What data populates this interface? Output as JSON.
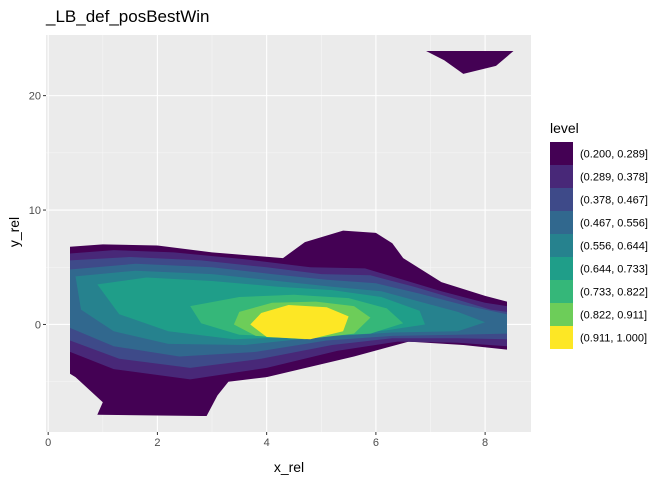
{
  "chart_data": {
    "type": "filled-contour",
    "title": "_LB_def_posBestWin",
    "xlabel": "x_rel",
    "ylabel": "y_rel",
    "xlim": [
      -0.04,
      8.84
    ],
    "ylim": [
      -9.4,
      25.3
    ],
    "x_ticks": [
      0,
      2,
      4,
      6,
      8
    ],
    "y_ticks": [
      0,
      10,
      20
    ],
    "x_tick_labels": [
      "0",
      "2",
      "4",
      "6",
      "8"
    ],
    "y_tick_labels": [
      "0",
      "10",
      "20"
    ],
    "grid": true,
    "legend": {
      "title": "level",
      "placement": "right",
      "entries": [
        {
          "label": "(0.200, 0.289]",
          "color": "#440154"
        },
        {
          "label": "(0.289, 0.378]",
          "color": "#482878"
        },
        {
          "label": "(0.378, 0.467]",
          "color": "#3E4A89"
        },
        {
          "label": "(0.467, 0.556]",
          "color": "#31688E"
        },
        {
          "label": "(0.556, 0.644]",
          "color": "#26828E"
        },
        {
          "label": "(0.644, 0.733]",
          "color": "#1F9E89"
        },
        {
          "label": "(0.733, 0.822]",
          "color": "#35B779"
        },
        {
          "label": "(0.822, 0.911]",
          "color": "#6DCD59"
        },
        {
          "label": "(0.911, 1.000]",
          "color": "#FDE725"
        }
      ]
    },
    "regions": [
      {
        "level": 0,
        "label": "(0.200, 0.289]",
        "points": [
          [
            0.4,
            6.8
          ],
          [
            1,
            7
          ],
          [
            2,
            6.9
          ],
          [
            3,
            6.3
          ],
          [
            4.3,
            5.8
          ],
          [
            4.7,
            7.2
          ],
          [
            5.4,
            8.2
          ],
          [
            6,
            8
          ],
          [
            6.3,
            7.1
          ],
          [
            6.5,
            5.8
          ],
          [
            7.2,
            3.7
          ],
          [
            8,
            2.5
          ],
          [
            8.4,
            2
          ],
          [
            8.4,
            -2.2
          ],
          [
            7.6,
            -1.8
          ],
          [
            6.6,
            -1.5
          ],
          [
            5.6,
            -2.8
          ],
          [
            4,
            -4.6
          ],
          [
            3.3,
            -5
          ],
          [
            3.1,
            -6.2
          ],
          [
            2.9,
            -8
          ],
          [
            2.8,
            -8
          ],
          [
            0.9,
            -7.9
          ],
          [
            1,
            -6.8
          ],
          [
            0.5,
            -4.6
          ],
          [
            0.4,
            -4.3
          ]
        ]
      },
      {
        "level": 0,
        "label": "(0.200, 0.289]",
        "points": [
          [
            6.92,
            23.9
          ],
          [
            7.25,
            23.1
          ],
          [
            7.6,
            21.9
          ],
          [
            8.2,
            22.6
          ],
          [
            8.52,
            23.9
          ]
        ]
      },
      {
        "level": 1,
        "label": "(0.289, 0.378]",
        "points": [
          [
            0.4,
            6.2
          ],
          [
            1.2,
            6.5
          ],
          [
            2.3,
            6.3
          ],
          [
            3.6,
            5.7
          ],
          [
            4.8,
            5
          ],
          [
            5.8,
            4.9
          ],
          [
            6.5,
            3.9
          ],
          [
            7.2,
            2.9
          ],
          [
            8,
            1.9
          ],
          [
            8.4,
            1.6
          ],
          [
            8.4,
            -1.9
          ],
          [
            7.5,
            -1.6
          ],
          [
            6.4,
            -1.5
          ],
          [
            5.3,
            -2.3
          ],
          [
            4,
            -3.8
          ],
          [
            2.6,
            -4.8
          ],
          [
            1.2,
            -3.9
          ],
          [
            0.4,
            -2.4
          ]
        ]
      },
      {
        "level": 2,
        "label": "(0.378, 0.467]",
        "points": [
          [
            0.4,
            5.6
          ],
          [
            1.5,
            5.9
          ],
          [
            2.8,
            5.6
          ],
          [
            4,
            5
          ],
          [
            5,
            4.4
          ],
          [
            5.9,
            4.3
          ],
          [
            6.7,
            3.3
          ],
          [
            7.4,
            2.3
          ],
          [
            8.1,
            1.3
          ],
          [
            8.4,
            1.1
          ],
          [
            8.4,
            -1.3
          ],
          [
            7.5,
            -1.2
          ],
          [
            6.3,
            -1.2
          ],
          [
            5.2,
            -1.8
          ],
          [
            3.9,
            -3
          ],
          [
            2.6,
            -3.8
          ],
          [
            1.3,
            -3
          ],
          [
            0.4,
            -1.4
          ]
        ]
      },
      {
        "level": 3,
        "label": "(0.467, 0.556]",
        "points": [
          [
            0.4,
            4.8
          ],
          [
            1.6,
            5.3
          ],
          [
            3,
            5
          ],
          [
            4.1,
            4.4
          ],
          [
            5.1,
            3.9
          ],
          [
            6,
            3.6
          ],
          [
            6.8,
            2.7
          ],
          [
            7.6,
            1.7
          ],
          [
            8.4,
            0.9
          ],
          [
            8.4,
            -0.8
          ],
          [
            7.5,
            -0.9
          ],
          [
            6.3,
            -1
          ],
          [
            5.1,
            -1.4
          ],
          [
            3.8,
            -2.4
          ],
          [
            2.4,
            -2.8
          ],
          [
            1.2,
            -1.9
          ],
          [
            0.4,
            -0.3
          ]
        ]
      },
      {
        "level": 4,
        "label": "(0.556, 0.644]",
        "points": [
          [
            0.5,
            4.2
          ],
          [
            1.6,
            4.7
          ],
          [
            3,
            4.4
          ],
          [
            4.2,
            3.8
          ],
          [
            5.2,
            3.3
          ],
          [
            6.1,
            2.9
          ],
          [
            6.8,
            2
          ],
          [
            7.5,
            1.1
          ],
          [
            8,
            0.2
          ],
          [
            7.5,
            -0.6
          ],
          [
            6.3,
            -0.7
          ],
          [
            5,
            -1.1
          ],
          [
            3.6,
            -1.8
          ],
          [
            2.2,
            -1.7
          ],
          [
            1.2,
            -0.6
          ],
          [
            0.6,
            1.3
          ]
        ]
      },
      {
        "level": 5,
        "label": "(0.644, 0.733]",
        "points": [
          [
            0.9,
            3.5
          ],
          [
            1.8,
            4.1
          ],
          [
            3,
            3.8
          ],
          [
            4.2,
            3.3
          ],
          [
            5.2,
            3
          ],
          [
            6.1,
            2.4
          ],
          [
            6.8,
            1.2
          ],
          [
            6.9,
            0
          ],
          [
            6.2,
            -0.5
          ],
          [
            5,
            -1
          ],
          [
            3.4,
            -1.3
          ],
          [
            2.2,
            -0.6
          ],
          [
            1.3,
            0.9
          ]
        ]
      },
      {
        "level": 6,
        "label": "(0.733, 0.822]",
        "points": [
          [
            2.6,
            1.6
          ],
          [
            3.5,
            2.4
          ],
          [
            4.5,
            2.6
          ],
          [
            5.5,
            2.3
          ],
          [
            6.2,
            1.4
          ],
          [
            6.5,
            0.1
          ],
          [
            5.9,
            -0.8
          ],
          [
            4.7,
            -1.1
          ],
          [
            3.5,
            -0.9
          ],
          [
            2.8,
            0.1
          ]
        ]
      },
      {
        "level": 7,
        "label": "(0.822, 0.911]",
        "points": [
          [
            3.5,
            1.1
          ],
          [
            4.1,
            1.9
          ],
          [
            4.9,
            2
          ],
          [
            5.6,
            1.6
          ],
          [
            5.9,
            0.6
          ],
          [
            5.6,
            -0.8
          ],
          [
            4.7,
            -1.3
          ],
          [
            3.8,
            -1
          ],
          [
            3.4,
            0
          ]
        ]
      },
      {
        "level": 8,
        "label": "(0.911, 1.000]",
        "points": [
          [
            3.9,
            1
          ],
          [
            4.4,
            1.7
          ],
          [
            5.1,
            1.5
          ],
          [
            5.5,
            0.7
          ],
          [
            5.4,
            -0.6
          ],
          [
            4.8,
            -1.3
          ],
          [
            4,
            -1.1
          ],
          [
            3.7,
            0
          ]
        ]
      }
    ]
  }
}
